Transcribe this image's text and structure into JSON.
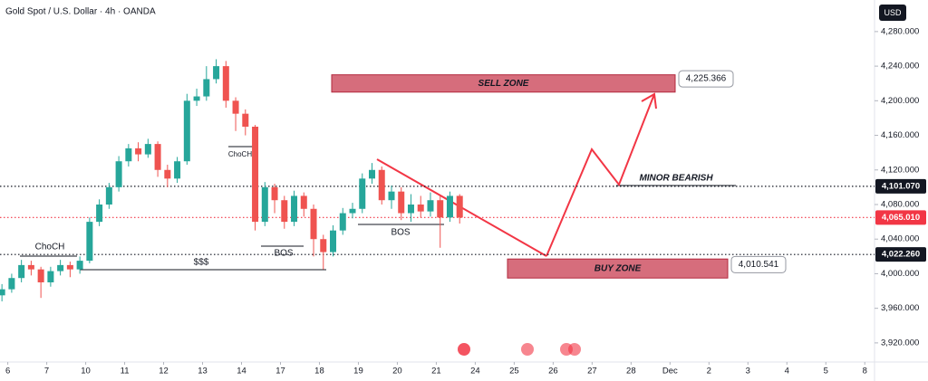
{
  "chart_data": {
    "type": "candlestick",
    "title": "Gold Spot / U.S. Dollar · 4h · OANDA",
    "currency_label": "USD",
    "up_color": "#26a69a",
    "down_color": "#ef5350",
    "x": [
      -0.15,
      0.1,
      0.35,
      0.6,
      0.85,
      1.1,
      1.35,
      1.6,
      1.85,
      2.1,
      2.35,
      2.6,
      2.85,
      3.1,
      3.35,
      3.6,
      3.85,
      4.1,
      4.35,
      4.6,
      4.85,
      5.1,
      5.35,
      5.6,
      5.85,
      6.1,
      6.35,
      6.6,
      6.85,
      7.1,
      7.35,
      7.6,
      7.85,
      8.1,
      8.35,
      8.6,
      8.85,
      9.1,
      9.35,
      9.6,
      9.85,
      10.1,
      10.35,
      10.6,
      10.85,
      11.1,
      11.35,
      11.6
    ],
    "open": [
      3975,
      3982,
      3995,
      4010,
      4005,
      3990,
      4003,
      4010,
      4005,
      4015,
      4060,
      4080,
      4100,
      4130,
      4145,
      4138,
      4150,
      4120,
      4110,
      4130,
      4200,
      4205,
      4225,
      4240,
      4200,
      4185,
      4170,
      4060,
      4100,
      4085,
      4060,
      4090,
      4075,
      4040,
      4025,
      4050,
      4070,
      4075,
      4110,
      4120,
      4085,
      4095,
      4070,
      4080,
      4072,
      4085,
      4065,
      4090
    ],
    "high": [
      3988,
      4000,
      4016,
      4015,
      4008,
      4008,
      4016,
      4014,
      4020,
      4065,
      4086,
      4105,
      4136,
      4150,
      4152,
      4156,
      4153,
      4126,
      4135,
      4208,
      4214,
      4240,
      4248,
      4246,
      4204,
      4190,
      4172,
      4106,
      4104,
      4090,
      4096,
      4094,
      4080,
      4045,
      4056,
      4076,
      4082,
      4116,
      4128,
      4124,
      4102,
      4100,
      4092,
      4090,
      4094,
      4090,
      4095,
      4092
    ],
    "low": [
      3968,
      3978,
      3990,
      3998,
      3972,
      3985,
      3998,
      3996,
      4000,
      4012,
      4055,
      4075,
      4095,
      4124,
      4130,
      4134,
      4112,
      4100,
      4105,
      4126,
      4194,
      4200,
      4220,
      4192,
      4165,
      4160,
      4050,
      4055,
      4070,
      4052,
      4055,
      4066,
      4020,
      4005,
      4020,
      4045,
      4064,
      4070,
      4104,
      4080,
      4075,
      4062,
      4060,
      4065,
      4066,
      4030,
      4060,
      4058
    ],
    "close": [
      3982,
      3995,
      4010,
      4005,
      3990,
      4003,
      4010,
      4005,
      4015,
      4060,
      4080,
      4100,
      4130,
      4145,
      4138,
      4150,
      4120,
      4110,
      4130,
      4200,
      4205,
      4225,
      4240,
      4200,
      4185,
      4170,
      4060,
      4100,
      4085,
      4060,
      4090,
      4075,
      4040,
      4025,
      4050,
      4070,
      4075,
      4110,
      4120,
      4085,
      4095,
      4070,
      4080,
      4072,
      4085,
      4065,
      4090,
      4065
    ],
    "xlim": [
      -0.2,
      22.25
    ],
    "xticks": [
      {
        "value": 0,
        "label": "6"
      },
      {
        "value": 1,
        "label": "7"
      },
      {
        "value": 2,
        "label": "10"
      },
      {
        "value": 3,
        "label": "11"
      },
      {
        "value": 4,
        "label": "12"
      },
      {
        "value": 5,
        "label": "13"
      },
      {
        "value": 6,
        "label": "14"
      },
      {
        "value": 7,
        "label": "17"
      },
      {
        "value": 8,
        "label": "18"
      },
      {
        "value": 9,
        "label": "19"
      },
      {
        "value": 10,
        "label": "20"
      },
      {
        "value": 11,
        "label": "21"
      },
      {
        "value": 12,
        "label": "24"
      },
      {
        "value": 13,
        "label": "25"
      },
      {
        "value": 14,
        "label": "26"
      },
      {
        "value": 15,
        "label": "27"
      },
      {
        "value": 16,
        "label": "28"
      },
      {
        "value": 17,
        "label": "Dec"
      },
      {
        "value": 18,
        "label": "2"
      },
      {
        "value": 19,
        "label": "3"
      },
      {
        "value": 20,
        "label": "4"
      },
      {
        "value": 21,
        "label": "5"
      },
      {
        "value": 22,
        "label": "8"
      }
    ],
    "ylim": [
      3900,
      4316.5
    ],
    "yticks": [
      {
        "value": 3920,
        "label": "3,920.000"
      },
      {
        "value": 3960,
        "label": "3,960.000"
      },
      {
        "value": 4000,
        "label": "4,000.000"
      },
      {
        "value": 4040,
        "label": "4,040.000"
      },
      {
        "value": 4080,
        "label": "4,080.000"
      },
      {
        "value": 4120,
        "label": "4,120.000"
      },
      {
        "value": 4160,
        "label": "4,160.000"
      },
      {
        "value": 4200,
        "label": "4,200.000"
      },
      {
        "value": 4240,
        "label": "4,240.000"
      },
      {
        "value": 4280,
        "label": "4,280.000"
      }
    ],
    "price_lines": [
      {
        "value": 4101.07,
        "label": "4,101.070",
        "color": "#131722"
      },
      {
        "value": 4065.01,
        "label": "4,065.010",
        "color": "#f23645"
      },
      {
        "value": 4022.26,
        "label": "4,022.260",
        "color": "#131722"
      }
    ],
    "zones": [
      {
        "label": "SELL ZONE",
        "top": 4230,
        "bottom": 4210,
        "price": 4225.366,
        "price_label": "4,225.366"
      },
      {
        "label": "BUY ZONE",
        "top": 4017,
        "bottom": 3995,
        "price": 4010.541,
        "price_label": "4,010.541"
      }
    ],
    "annotations": [
      "ChoCH",
      "$$$",
      "BOS",
      "ChoCH",
      "BOS",
      "MINOR BEARISH"
    ]
  }
}
